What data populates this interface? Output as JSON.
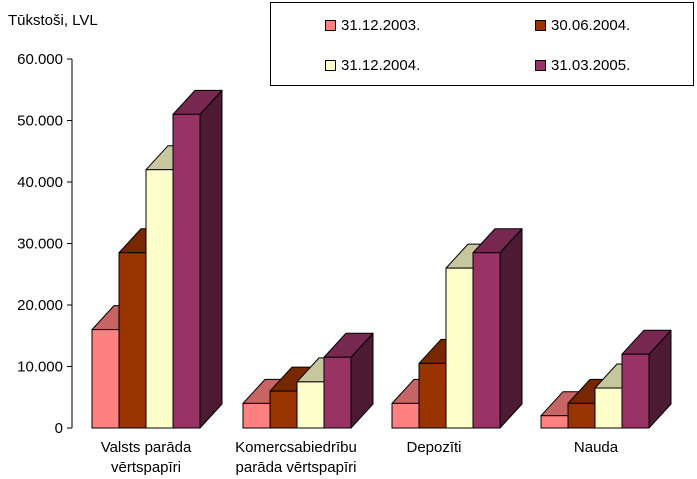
{
  "chart_data": {
    "type": "bar",
    "ylabel": "Tūkstoši, LVL",
    "ylim": [
      0,
      60000
    ],
    "y_ticks": [
      {
        "value": 0,
        "label": "0"
      },
      {
        "value": 10000,
        "label": "10.000"
      },
      {
        "value": 20000,
        "label": "20.000"
      },
      {
        "value": 30000,
        "label": "30.000"
      },
      {
        "value": 40000,
        "label": "40.000"
      },
      {
        "value": 50000,
        "label": "50.000"
      },
      {
        "value": 60000,
        "label": "60.000"
      }
    ],
    "categories": [
      {
        "line1": "Valsts parāda",
        "line2": "vērtspapīri"
      },
      {
        "line1": "Komercsabiedrību",
        "line2": "parāda vērtspapīri"
      },
      {
        "line1": "Depozīti",
        "line2": ""
      },
      {
        "line1": "Nauda",
        "line2": ""
      }
    ],
    "series": [
      {
        "name": "31.12.2003.",
        "color": "#FF8080",
        "values": [
          16000,
          4000,
          4000,
          2000
        ]
      },
      {
        "name": "30.06.2004.",
        "color": "#993300",
        "values": [
          28500,
          6000,
          10500,
          4000
        ]
      },
      {
        "name": "31.12.2004.",
        "color": "#FFFFCC",
        "values": [
          42000,
          7500,
          26000,
          6500
        ]
      },
      {
        "name": "31.03.2005.",
        "color": "#993366",
        "values": [
          51000,
          11500,
          28500,
          12000
        ]
      }
    ],
    "legend_position": "top-right",
    "grid": false
  }
}
